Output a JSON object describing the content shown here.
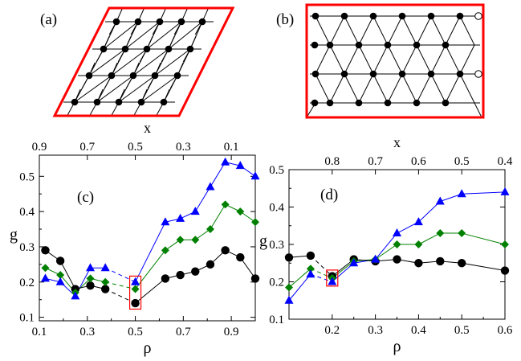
{
  "panels": {
    "a": {
      "label": "(a)"
    },
    "b": {
      "label": "(b)"
    }
  },
  "colors": {
    "border": "#ff0000",
    "blue": "#0000ff",
    "green": "#008000",
    "black": "#000000",
    "box": "#ff0000",
    "lattice": "#000000"
  },
  "chart_data": [
    {
      "type": "line",
      "label": "(c)",
      "xlabel": "ρ",
      "ylabel": "g",
      "top_xlabel": "x",
      "xlim": [
        0.1,
        1.0
      ],
      "ylim": [
        0.09,
        0.56
      ],
      "xticks": [
        0.1,
        0.3,
        0.5,
        0.7,
        0.9
      ],
      "xtick_labels": [
        "0.1",
        "0.3",
        "0.5",
        "0.7",
        "0.9"
      ],
      "yticks": [
        0.1,
        0.2,
        0.3,
        0.4,
        0.5
      ],
      "ytick_labels": [
        "0.1",
        "0.2",
        "0.3",
        "0.4",
        "0.5"
      ],
      "top_ticks_at_rho": [
        0.1,
        0.3,
        0.5,
        0.7,
        0.9
      ],
      "top_tick_labels": [
        "0.9",
        "0.7",
        "0.5",
        "0.3",
        "0.1"
      ],
      "highlight": {
        "x": 0.5,
        "ymin": 0.13,
        "ymax": 0.21
      },
      "series": [
        {
          "name": "triangles",
          "marker": "triangle",
          "color": "#0000ff",
          "x": [
            0.125,
            0.1875,
            0.25,
            0.3125,
            0.375,
            0.5,
            0.625,
            0.6875,
            0.75,
            0.8125,
            0.875,
            0.9375,
            1.0
          ],
          "y": [
            0.21,
            0.2,
            0.16,
            0.24,
            0.24,
            0.2,
            0.37,
            0.38,
            0.4,
            0.47,
            0.54,
            0.53,
            0.5
          ],
          "dashed_segments": [
            4
          ]
        },
        {
          "name": "diamonds",
          "marker": "diamond",
          "color": "#008000",
          "x": [
            0.125,
            0.1875,
            0.25,
            0.3125,
            0.375,
            0.5,
            0.625,
            0.6875,
            0.75,
            0.8125,
            0.875,
            0.9375,
            1.0
          ],
          "y": [
            0.24,
            0.22,
            0.17,
            0.21,
            0.2,
            0.18,
            0.29,
            0.32,
            0.32,
            0.35,
            0.42,
            0.4,
            0.37
          ],
          "dashed_segments": [
            4
          ]
        },
        {
          "name": "circles",
          "marker": "circle",
          "color": "#000000",
          "x": [
            0.125,
            0.1875,
            0.25,
            0.3125,
            0.375,
            0.5,
            0.625,
            0.6875,
            0.75,
            0.8125,
            0.875,
            0.9375,
            1.0
          ],
          "y": [
            0.29,
            0.26,
            0.18,
            0.19,
            0.18,
            0.14,
            0.21,
            0.22,
            0.23,
            0.25,
            0.29,
            0.27,
            0.21
          ],
          "dashed_segments": [
            4
          ]
        }
      ]
    },
    {
      "type": "line",
      "label": "(d)",
      "xlabel": "ρ",
      "ylabel": "g",
      "top_xlabel": "x",
      "xlim": [
        0.1,
        0.6
      ],
      "ylim": [
        0.1,
        0.5
      ],
      "xticks": [
        0.2,
        0.3,
        0.4,
        0.5,
        0.6
      ],
      "xtick_labels": [
        "0.2",
        "0.3",
        "0.4",
        "0.5",
        "0.6"
      ],
      "yticks": [
        0.1,
        0.2,
        0.3,
        0.4,
        0.5
      ],
      "ytick_labels": [
        "0.1",
        "0.2",
        "0.3",
        "0.4",
        "0.5"
      ],
      "top_ticks_at_rho": [
        0.2,
        0.3,
        0.4,
        0.5,
        0.6
      ],
      "top_tick_labels": [
        "0.8",
        "0.7",
        "0.6",
        "0.5",
        "0.4"
      ],
      "highlight": {
        "x": 0.2,
        "ymin": 0.195,
        "ymax": 0.225
      },
      "series": [
        {
          "name": "triangles",
          "marker": "triangle",
          "color": "#0000ff",
          "x": [
            0.1,
            0.15,
            0.2,
            0.25,
            0.3,
            0.35,
            0.4,
            0.45,
            0.5,
            0.6
          ],
          "y": [
            0.15,
            0.22,
            0.2,
            0.25,
            0.26,
            0.33,
            0.36,
            0.415,
            0.435,
            0.44
          ],
          "dashed_segments": [
            1
          ]
        },
        {
          "name": "diamonds",
          "marker": "diamond",
          "color": "#008000",
          "x": [
            0.1,
            0.15,
            0.2,
            0.25,
            0.3,
            0.35,
            0.4,
            0.45,
            0.5,
            0.6
          ],
          "y": [
            0.185,
            0.235,
            0.21,
            0.255,
            0.26,
            0.3,
            0.3,
            0.33,
            0.33,
            0.3
          ],
          "dashed_segments": [
            1
          ]
        },
        {
          "name": "circles",
          "marker": "circle",
          "color": "#000000",
          "x": [
            0.1,
            0.15,
            0.2,
            0.25,
            0.3,
            0.35,
            0.4,
            0.45,
            0.5,
            0.6
          ],
          "y": [
            0.265,
            0.27,
            0.215,
            0.26,
            0.255,
            0.26,
            0.25,
            0.255,
            0.25,
            0.23
          ],
          "dashed_segments": [
            1
          ]
        }
      ]
    }
  ]
}
